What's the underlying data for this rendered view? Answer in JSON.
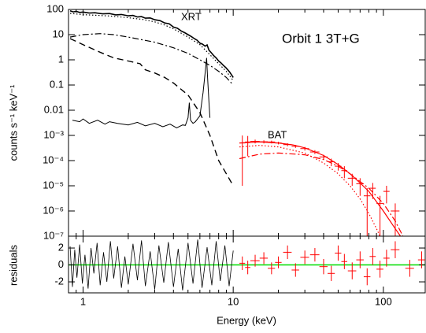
{
  "chart_data": [
    {
      "type": "line",
      "log_x": true,
      "log_y": true,
      "xlim": [
        0.8,
        190
      ],
      "ylim": [
        1e-07,
        100
      ],
      "xticks": [
        1,
        10,
        100
      ],
      "xminorticks": [
        0.9,
        2,
        3,
        4,
        5,
        6,
        7,
        8,
        9,
        20,
        30,
        40,
        50,
        60,
        70,
        80,
        90
      ],
      "yticks": [
        100,
        10,
        1,
        0.1,
        0.01,
        {
          "value": 0.001,
          "label": "10⁻³"
        },
        {
          "value": 0.0001,
          "label": "10⁻⁴"
        },
        {
          "value": 1e-05,
          "label": "10⁻⁵"
        },
        {
          "value": 1e-06,
          "label": "10⁻⁶"
        },
        {
          "value": 1e-07,
          "label": "10⁻⁷"
        }
      ],
      "ylabel": "counts s⁻¹ keV⁻¹",
      "annotations": [
        "XRT",
        "BAT",
        "Orbit 1 3T+G"
      ],
      "series": [
        {
          "kind": "line",
          "color": "#000000",
          "dash": "solid",
          "width": 1.6,
          "x": [
            0.82,
            0.86,
            0.9,
            0.95,
            1.0,
            1.1,
            1.2,
            1.35,
            1.5,
            1.65,
            1.8,
            2.0,
            2.15,
            2.3,
            2.45,
            2.6,
            2.8,
            3.0,
            3.25,
            3.5,
            3.75,
            4.0,
            4.25,
            4.5,
            4.75,
            5.0,
            5.25,
            5.5,
            5.75,
            6.0,
            6.25,
            6.5,
            6.7,
            6.9,
            7.1,
            7.4,
            7.7,
            8.0,
            8.3,
            8.6,
            8.9,
            9.2,
            9.5,
            9.8,
            10.0
          ],
          "values": [
            88,
            80,
            84,
            76,
            79,
            72,
            74,
            67,
            69,
            61,
            63,
            56,
            58,
            50,
            52,
            45,
            46,
            39,
            36,
            29,
            27,
            20,
            18,
            14,
            12,
            10,
            8.5,
            7,
            6,
            4.6,
            4.2,
            3.5,
            3.9,
            2.4,
            2.0,
            1.5,
            1.2,
            0.9,
            0.75,
            0.6,
            0.5,
            0.4,
            0.32,
            0.24,
            0.2
          ]
        },
        {
          "kind": "line",
          "color": "#000000",
          "dash": "dotted",
          "width": 1.2,
          "x": [
            0.82,
            1.0,
            1.5,
            2.0,
            2.5,
            3.0,
            3.5,
            4.0,
            5.0,
            6.0,
            7.0,
            8.0,
            9.0,
            10.0
          ],
          "values": [
            70,
            62,
            55,
            47,
            40,
            32,
            24,
            17,
            8,
            4,
            1.6,
            0.7,
            0.35,
            0.15
          ]
        },
        {
          "kind": "line",
          "color": "#000000",
          "dash": "dashdot",
          "width": 1.2,
          "x": [
            0.82,
            1.0,
            1.3,
            1.6,
            2.0,
            3.0,
            4.0,
            5.0,
            6.0,
            7.0,
            8.0,
            9.0,
            10.0
          ],
          "values": [
            8,
            10,
            11,
            10,
            8,
            5,
            3,
            1.8,
            1,
            0.6,
            0.35,
            0.2,
            0.1
          ]
        },
        {
          "kind": "line",
          "color": "#000000",
          "dash": "dashed",
          "width": 1.4,
          "x": [
            0.82,
            1.0,
            1.3,
            1.6,
            2.0,
            2.4,
            2.6,
            3.0,
            3.5,
            4.0,
            5.0,
            6.0,
            7.0,
            8.0,
            9.0,
            10.0
          ],
          "values": [
            7,
            4,
            2,
            1.2,
            0.9,
            0.7,
            0.4,
            0.3,
            0.2,
            0.12,
            0.04,
            0.008,
            0.001,
            0.0001,
            3e-05,
            1e-05
          ]
        },
        {
          "kind": "line",
          "color": "#000000",
          "dash": "solid",
          "width": 1,
          "x": [
            0.85,
            0.95,
            1.0,
            1.1,
            1.25,
            1.4,
            1.5,
            1.7,
            2.0,
            2.3,
            2.6,
            3.0,
            3.4,
            3.8,
            4.2,
            4.6,
            4.8,
            5.0,
            5.1,
            5.2,
            5.4,
            5.6,
            6.0,
            6.3,
            6.5,
            6.65,
            6.75,
            6.9,
            7.0
          ],
          "values": [
            0.004,
            0.0035,
            0.0045,
            0.003,
            0.004,
            0.0028,
            0.0035,
            0.003,
            0.0026,
            0.0033,
            0.0024,
            0.003,
            0.0022,
            0.0028,
            0.002,
            0.0026,
            0.0025,
            0.005,
            0.02,
            0.004,
            0.003,
            0.0035,
            0.006,
            0.05,
            0.3,
            1.2,
            0.2,
            0.02,
            0.005
          ]
        },
        {
          "kind": "line",
          "color": "#ff0000",
          "dash": "solid",
          "width": 1.2,
          "x": [
            11,
            15,
            20,
            25,
            30,
            40,
            50,
            60,
            70,
            80,
            100,
            120,
            130
          ],
          "values": [
            0.0005,
            0.00055,
            0.0005,
            0.00042,
            0.00032,
            0.00016,
            7e-05,
            3e-05,
            1.3e-05,
            6e-06,
            1e-06,
            2e-07,
            1e-07
          ]
        },
        {
          "kind": "line",
          "color": "#ff0000",
          "dash": "dotted",
          "width": 1.2,
          "x": [
            11,
            15,
            20,
            30,
            40,
            50,
            60,
            70,
            80,
            90,
            95
          ],
          "values": [
            0.00035,
            0.0004,
            0.00035,
            0.0002,
            8e-05,
            3e-05,
            1e-05,
            3e-06,
            8e-07,
            2e-07,
            1e-07
          ]
        },
        {
          "kind": "line",
          "color": "#ff0000",
          "dash": "dashdot",
          "width": 1.2,
          "x": [
            11,
            15,
            20,
            30,
            40,
            50,
            60,
            80,
            100,
            120,
            135
          ],
          "values": [
            0.00012,
            0.00018,
            0.0002,
            0.00017,
            0.00011,
            6e-05,
            3e-05,
            8e-06,
            2e-06,
            4e-07,
            1e-07
          ]
        },
        {
          "kind": "errorbar",
          "color": "#ff0000",
          "x": [
            11.5,
            12.5,
            14,
            16,
            18,
            20,
            23,
            26,
            30,
            35,
            40,
            45,
            50,
            55,
            62,
            70,
            78,
            85,
            95,
            105,
            120
          ],
          "xerr": [
            0.5,
            0.5,
            1,
            1,
            1,
            1,
            1.5,
            1.5,
            2,
            2.5,
            2.5,
            2.5,
            2.5,
            2.5,
            4,
            4,
            4,
            4,
            5,
            5,
            8
          ],
          "values": [
            0.0005,
            0.00055,
            0.00058,
            0.00056,
            0.00055,
            0.0005,
            0.00043,
            0.00037,
            0.0003,
            0.00022,
            0.00014,
            9e-05,
            6e-05,
            4e-05,
            2e-05,
            1.2e-05,
            4e-06,
            8e-06,
            2e-06,
            6e-06,
            1e-06
          ],
          "yerr": [
            0.00049,
            0.0004,
            0.0001,
            8e-05,
            7e-05,
            6e-05,
            6e-05,
            5e-05,
            5e-05,
            4e-05,
            3e-05,
            3e-05,
            2e-05,
            2e-05,
            1e-05,
            8e-06,
            4e-06,
            5e-06,
            2e-06,
            4e-06,
            1e-06
          ]
        }
      ]
    },
    {
      "type": "line",
      "log_x": true,
      "log_y": false,
      "xlim": [
        0.8,
        190
      ],
      "ylim": [
        -3.3,
        3.4
      ],
      "xticks": [
        1,
        10,
        100
      ],
      "xminorticks": [
        0.9,
        2,
        3,
        4,
        5,
        6,
        7,
        8,
        9,
        20,
        30,
        40,
        50,
        60,
        70,
        80,
        90
      ],
      "yticks": [
        2,
        0,
        -2
      ],
      "xlabel": "Energy (keV)",
      "ylabel": "residuals",
      "reference_line": {
        "value": 0,
        "color": "#00dd00"
      },
      "series": [
        {
          "kind": "line",
          "color": "#000000",
          "dash": "solid",
          "width": 0.8,
          "x": [
            0.82,
            0.85,
            0.88,
            0.91,
            0.95,
            0.99,
            1.03,
            1.08,
            1.13,
            1.18,
            1.24,
            1.3,
            1.37,
            1.44,
            1.52,
            1.6,
            1.7,
            1.8,
            1.9,
            2.0,
            2.15,
            2.3,
            2.45,
            2.6,
            2.8,
            3.0,
            3.2,
            3.45,
            3.7,
            4.0,
            4.3,
            4.6,
            5.0,
            5.4,
            5.8,
            6.2,
            6.7,
            7.2,
            7.7,
            8.2,
            8.8,
            9.4,
            10.0
          ],
          "values": [
            2.2,
            -2.6,
            1.8,
            -1.5,
            2.4,
            -2.2,
            1.2,
            -2.8,
            2.0,
            -1.0,
            2.6,
            -2.4,
            1.5,
            -2.0,
            2.8,
            -1.6,
            2.2,
            -2.7,
            1.0,
            -2.3,
            2.5,
            -1.8,
            2.9,
            -2.5,
            1.6,
            -2.9,
            2.3,
            -2.1,
            2.7,
            -2.6,
            1.9,
            -3.0,
            2.6,
            -2.2,
            3.0,
            -2.7,
            2.1,
            -2.4,
            2.8,
            -1.9,
            2.3,
            -2.5,
            1.7
          ]
        },
        {
          "kind": "errorbar",
          "color": "#ff0000",
          "x": [
            11.5,
            12.5,
            14,
            16,
            18,
            20,
            23,
            26,
            30,
            35,
            40,
            45,
            50,
            55,
            62,
            70,
            78,
            85,
            95,
            105,
            120,
            150,
            180
          ],
          "xerr": [
            0.5,
            0.5,
            1,
            1,
            1,
            1,
            1.5,
            1.5,
            2,
            2.5,
            2.5,
            2.5,
            2.5,
            2.5,
            4,
            4,
            4,
            4,
            5,
            5,
            8,
            10,
            10
          ],
          "values": [
            0.2,
            -0.3,
            0.5,
            0.8,
            -0.4,
            0.3,
            1.5,
            -0.6,
            0.9,
            1.2,
            -0.2,
            -1.0,
            1.4,
            0.4,
            -0.7,
            0.6,
            -1.4,
            1.0,
            -0.5,
            0.8,
            1.8,
            -0.4,
            0.6
          ],
          "yerr": [
            0.8,
            0.8,
            0.7,
            0.7,
            0.7,
            0.7,
            0.8,
            0.8,
            0.8,
            0.8,
            0.9,
            0.9,
            0.9,
            0.9,
            1.0,
            1.0,
            1.0,
            1.0,
            1.0,
            1.0,
            1.0,
            1.0,
            1.0
          ]
        }
      ]
    }
  ]
}
